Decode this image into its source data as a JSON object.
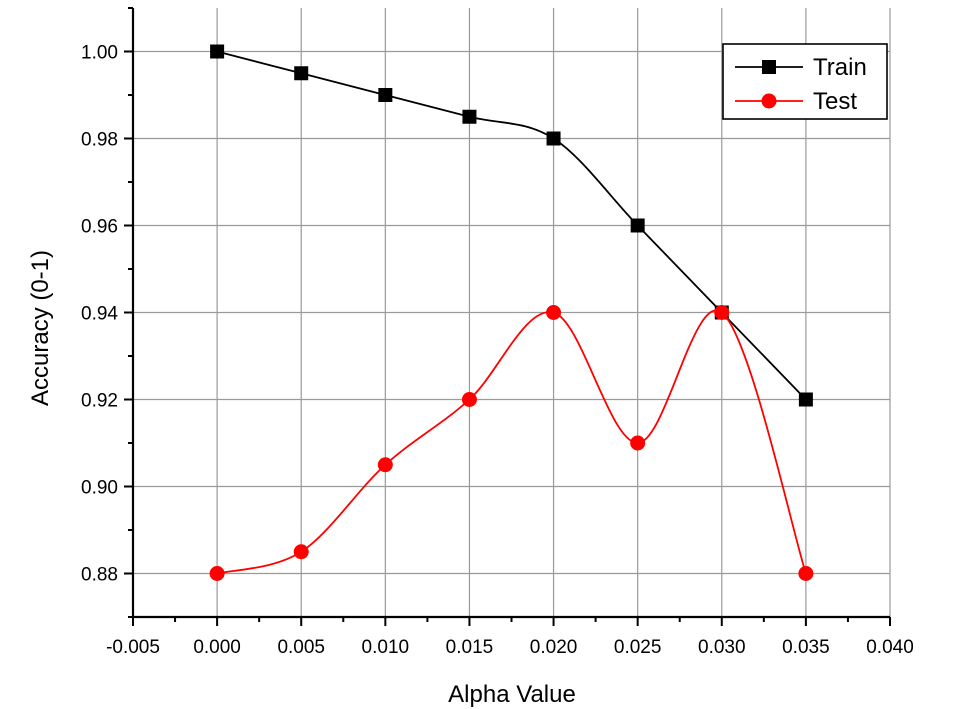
{
  "chart_data": {
    "type": "line",
    "title": "",
    "xlabel": "Alpha Value",
    "ylabel": "Accuracy (0-1)",
    "xlim": [
      -0.005,
      0.04
    ],
    "ylim": [
      0.87,
      1.01
    ],
    "x_ticks": [
      -0.005,
      0.0,
      0.005,
      0.01,
      0.015,
      0.02,
      0.025,
      0.03,
      0.035,
      0.04
    ],
    "x_tick_labels": [
      "-0.005",
      "0.000",
      "0.005",
      "0.010",
      "0.015",
      "0.020",
      "0.025",
      "0.030",
      "0.035",
      "0.040"
    ],
    "y_ticks": [
      0.88,
      0.9,
      0.92,
      0.94,
      0.96,
      0.98,
      1.0
    ],
    "y_tick_labels": [
      "0.88",
      "0.90",
      "0.92",
      "0.94",
      "0.96",
      "0.98",
      "1.00"
    ],
    "grid": true,
    "legend_position": "top-right",
    "x": [
      0.0,
      0.005,
      0.01,
      0.015,
      0.02,
      0.025,
      0.03,
      0.035
    ],
    "series": [
      {
        "name": "Train",
        "color": "#000000",
        "marker": "square",
        "values": [
          1.0,
          0.995,
          0.99,
          0.985,
          0.98,
          0.96,
          0.94,
          0.92
        ]
      },
      {
        "name": "Test",
        "color": "#ff0000",
        "marker": "circle",
        "values": [
          0.88,
          0.885,
          0.905,
          0.92,
          0.94,
          0.91,
          0.94,
          0.88
        ]
      }
    ]
  }
}
